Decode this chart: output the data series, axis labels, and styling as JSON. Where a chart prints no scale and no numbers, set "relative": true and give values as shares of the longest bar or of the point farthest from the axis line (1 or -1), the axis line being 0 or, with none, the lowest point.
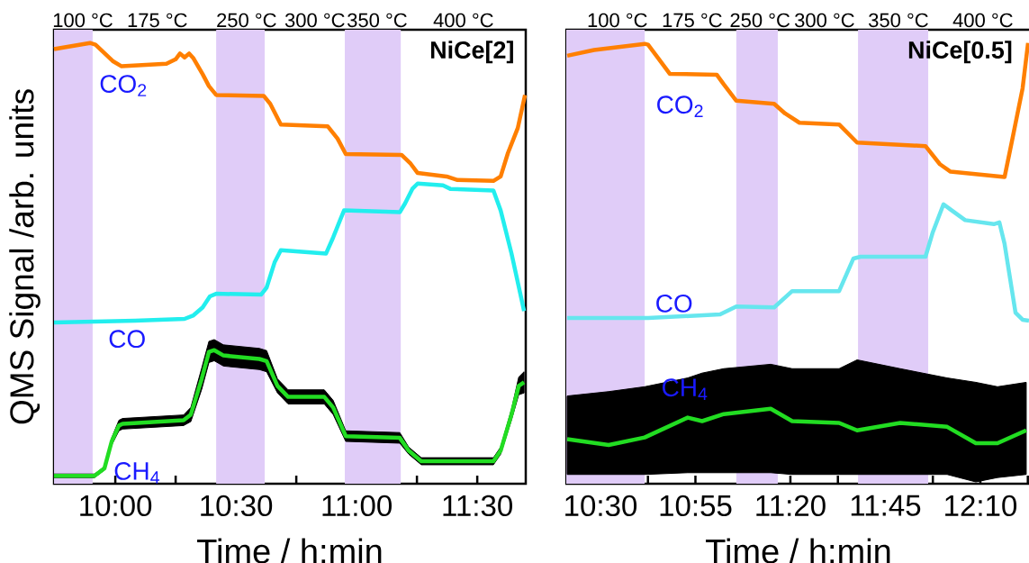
{
  "chart_data": [
    {
      "type": "line",
      "title": "NiCe[2]",
      "xlabel": "Time / h:min",
      "ylabel": "QMS Signal /arb. units",
      "relative": true,
      "xlim": [
        9.746,
        11.701
      ],
      "xticks": [
        {
          "value": 10.0,
          "label": "10:00"
        },
        {
          "value": 10.25,
          "label": null
        },
        {
          "value": 10.5,
          "label": "10:30"
        },
        {
          "value": 10.75,
          "label": null
        },
        {
          "value": 11.0,
          "label": "11:00"
        },
        {
          "value": 11.25,
          "label": null
        },
        {
          "value": 11.5,
          "label": "11:30"
        }
      ],
      "bands": [
        {
          "axis": "x",
          "from": 9.746,
          "to": 9.906,
          "color": "#e0ccf8"
        },
        {
          "axis": "x",
          "from": 10.418,
          "to": 10.619,
          "color": "#e0ccf8"
        },
        {
          "axis": "x",
          "from": 10.951,
          "to": 11.183,
          "color": "#e0ccf8"
        }
      ],
      "annotations": [
        "100 °C",
        "175 °C",
        "250 °C",
        "300 °C",
        "350 °C",
        "400 °C"
      ],
      "series": [
        {
          "name": "CO$_{2}$",
          "color": "#ff7f00",
          "x": [
            9.746,
            9.895,
            9.918,
            9.989,
            10.026,
            10.212,
            10.25,
            10.268,
            10.287,
            10.306,
            10.324,
            10.362,
            10.388,
            10.418,
            10.615,
            10.642,
            10.686,
            10.88,
            10.921,
            10.955,
            11.186,
            11.224,
            11.253,
            11.373,
            11.418,
            11.567,
            11.597,
            11.627,
            11.668,
            11.698
          ],
          "values": [
            0.986,
            1.0,
            0.996,
            0.959,
            0.947,
            0.953,
            0.963,
            0.976,
            0.967,
            0.976,
            0.965,
            0.929,
            0.902,
            0.882,
            0.88,
            0.862,
            0.815,
            0.811,
            0.783,
            0.748,
            0.746,
            0.726,
            0.705,
            0.697,
            0.689,
            0.687,
            0.697,
            0.75,
            0.807,
            0.882
          ]
        },
        {
          "name": "CO",
          "color": "#22eeee",
          "x": [
            9.746,
            10.082,
            10.287,
            10.324,
            10.362,
            10.392,
            10.418,
            10.604,
            10.627,
            10.66,
            10.686,
            10.873,
            10.903,
            10.933,
            10.948,
            11.179,
            11.201,
            11.231,
            11.253,
            11.358,
            11.388,
            11.567,
            11.597,
            11.642,
            11.694
          ],
          "values": [
            0.366,
            0.37,
            0.374,
            0.382,
            0.4,
            0.425,
            0.431,
            0.429,
            0.445,
            0.502,
            0.53,
            0.522,
            0.559,
            0.6,
            0.62,
            0.616,
            0.636,
            0.669,
            0.681,
            0.677,
            0.669,
            0.665,
            0.62,
            0.522,
            0.392
          ]
        },
        {
          "name": "CH$_{4}$",
          "color": "#22dd22",
          "x": [
            9.746,
            9.914,
            9.955,
            9.985,
            10.015,
            10.03,
            10.283,
            10.313,
            10.358,
            10.388,
            10.41,
            10.448,
            10.597,
            10.627,
            10.672,
            10.716,
            10.866,
            10.903,
            10.955,
            11.179,
            11.216,
            11.268,
            11.567,
            11.597,
            11.642,
            11.672,
            11.694
          ],
          "values": [
            0.018,
            0.018,
            0.035,
            0.096,
            0.132,
            0.136,
            0.144,
            0.157,
            0.238,
            0.299,
            0.303,
            0.291,
            0.283,
            0.278,
            0.222,
            0.197,
            0.197,
            0.173,
            0.108,
            0.104,
            0.075,
            0.051,
            0.051,
            0.075,
            0.157,
            0.222,
            0.23
          ],
          "lower": [
            0.014,
            0.014,
            0.031,
            0.088,
            0.12,
            0.124,
            0.132,
            0.141,
            0.214,
            0.275,
            0.279,
            0.267,
            0.259,
            0.254,
            0.206,
            0.181,
            0.181,
            0.157,
            0.096,
            0.092,
            0.067,
            0.043,
            0.043,
            0.067,
            0.145,
            0.202,
            0.206
          ],
          "upper": [
            0.022,
            0.022,
            0.039,
            0.104,
            0.144,
            0.148,
            0.156,
            0.173,
            0.262,
            0.323,
            0.327,
            0.315,
            0.307,
            0.302,
            0.238,
            0.213,
            0.213,
            0.189,
            0.12,
            0.116,
            0.083,
            0.059,
            0.059,
            0.083,
            0.169,
            0.242,
            0.254
          ]
        }
      ]
    },
    {
      "type": "line",
      "title": "NiCe[0.5]",
      "xlabel": "Time / h:min",
      "relative": true,
      "xlim": [
        10.35,
        12.388
      ],
      "xticks": [
        {
          "value": 10.5,
          "label": "10:30"
        },
        {
          "value": 10.7083,
          "label": null
        },
        {
          "value": 10.9167,
          "label": "10:55"
        },
        {
          "value": 11.125,
          "label": null
        },
        {
          "value": 11.3333,
          "label": "11:20"
        },
        {
          "value": 11.5417,
          "label": null
        },
        {
          "value": 11.75,
          "label": "11:45"
        },
        {
          "value": 11.9583,
          "label": null
        },
        {
          "value": 12.1667,
          "label": "12:10"
        },
        {
          "value": 12.375,
          "label": null
        }
      ],
      "bands": [
        {
          "axis": "x",
          "from": 10.35,
          "to": 10.694,
          "color": "#e0ccf8"
        },
        {
          "axis": "x",
          "from": 11.096,
          "to": 11.278,
          "color": "#e0ccf8"
        },
        {
          "axis": "x",
          "from": 11.63,
          "to": 11.938,
          "color": "#e0ccf8"
        }
      ],
      "annotations": [
        "100 °C",
        "175 °C",
        "250 °C",
        "300 °C",
        "350 °C",
        "400 °C"
      ],
      "series": [
        {
          "name": "CO$_{2}$",
          "color": "#ff7f00",
          "x": [
            10.354,
            10.472,
            10.694,
            10.709,
            10.757,
            10.804,
            11.01,
            11.041,
            11.096,
            11.262,
            11.31,
            11.373,
            11.547,
            11.626,
            11.926,
            11.989,
            12.036,
            12.273,
            12.304,
            12.352,
            12.376
          ],
          "values": [
            0.971,
            0.984,
            0.998,
            0.996,
            0.963,
            0.93,
            0.928,
            0.906,
            0.869,
            0.862,
            0.84,
            0.819,
            0.815,
            0.774,
            0.766,
            0.725,
            0.708,
            0.696,
            0.774,
            0.897,
            1.0
          ]
        },
        {
          "name": "CO",
          "color": "#66e6ee",
          "x": [
            10.354,
            10.709,
            11.025,
            11.096,
            11.262,
            11.341,
            11.547,
            11.61,
            11.641,
            11.926,
            11.957,
            12.005,
            12.036,
            12.1,
            12.226,
            12.25,
            12.273,
            12.321,
            12.352,
            12.38
          ],
          "values": [
            0.376,
            0.376,
            0.384,
            0.402,
            0.4,
            0.437,
            0.437,
            0.511,
            0.515,
            0.515,
            0.569,
            0.634,
            0.622,
            0.598,
            0.589,
            0.593,
            0.544,
            0.388,
            0.372,
            0.37
          ]
        },
        {
          "name": "CH$_{4}$",
          "color": "#22dd22",
          "x": [
            10.354,
            10.536,
            10.694,
            10.883,
            10.946,
            11.041,
            11.247,
            11.341,
            11.547,
            11.626,
            11.815,
            12.021,
            12.147,
            12.242,
            12.368
          ],
          "values": [
            0.101,
            0.088,
            0.105,
            0.15,
            0.142,
            0.158,
            0.17,
            0.142,
            0.138,
            0.121,
            0.138,
            0.129,
            0.092,
            0.092,
            0.121
          ],
          "lower": [
            0.021,
            0.021,
            0.021,
            0.025,
            0.025,
            0.025,
            0.025,
            0.021,
            0.021,
            0.021,
            0.021,
            0.021,
            0.004,
            0.014,
            0.021
          ],
          "upper": [
            0.199,
            0.209,
            0.22,
            0.24,
            0.251,
            0.261,
            0.271,
            0.261,
            0.261,
            0.281,
            0.261,
            0.24,
            0.23,
            0.22,
            0.23
          ]
        }
      ]
    }
  ]
}
